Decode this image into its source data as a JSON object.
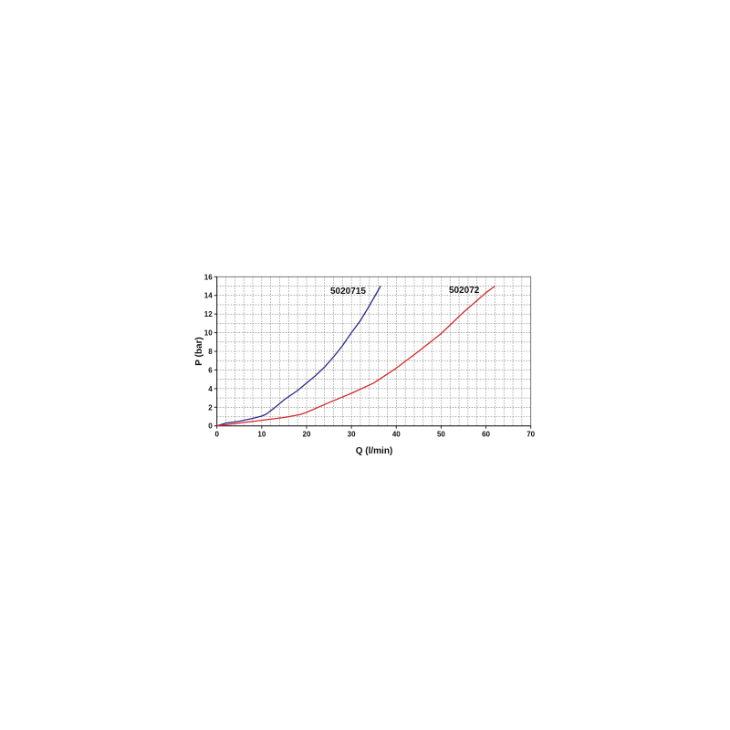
{
  "chart_data": {
    "type": "line",
    "title": "",
    "xlabel": "Q (l/min)",
    "ylabel": "P (bar)",
    "xlim": [
      0,
      70
    ],
    "ylim": [
      0,
      16
    ],
    "xticks": [
      0,
      10,
      20,
      30,
      40,
      50,
      60,
      70
    ],
    "yticks": [
      0,
      2,
      4,
      6,
      8,
      10,
      12,
      14,
      16
    ],
    "grid": true,
    "grid_style": "dotted",
    "legend": "none (inline labels)",
    "series": [
      {
        "name": "5020715",
        "color": "#2e2a8a",
        "x": [
          0,
          2,
          5,
          8,
          10,
          11,
          13,
          15,
          18,
          20,
          22,
          24,
          26,
          28,
          30,
          32,
          34,
          36.5
        ],
        "y": [
          0,
          0.3,
          0.5,
          0.8,
          1.05,
          1.25,
          2.0,
          2.8,
          3.8,
          4.6,
          5.4,
          6.3,
          7.4,
          8.6,
          10.0,
          11.3,
          12.9,
          15.0
        ]
      },
      {
        "name": "502072",
        "color": "#d42a2a",
        "x": [
          0,
          5,
          10,
          15,
          18.5,
          20,
          25,
          30,
          35,
          40,
          45,
          50,
          55,
          60,
          62
        ],
        "y": [
          0,
          0.3,
          0.6,
          0.9,
          1.2,
          1.45,
          2.5,
          3.5,
          4.6,
          6.2,
          8.0,
          9.9,
          12.2,
          14.3,
          15.0
        ]
      }
    ]
  }
}
